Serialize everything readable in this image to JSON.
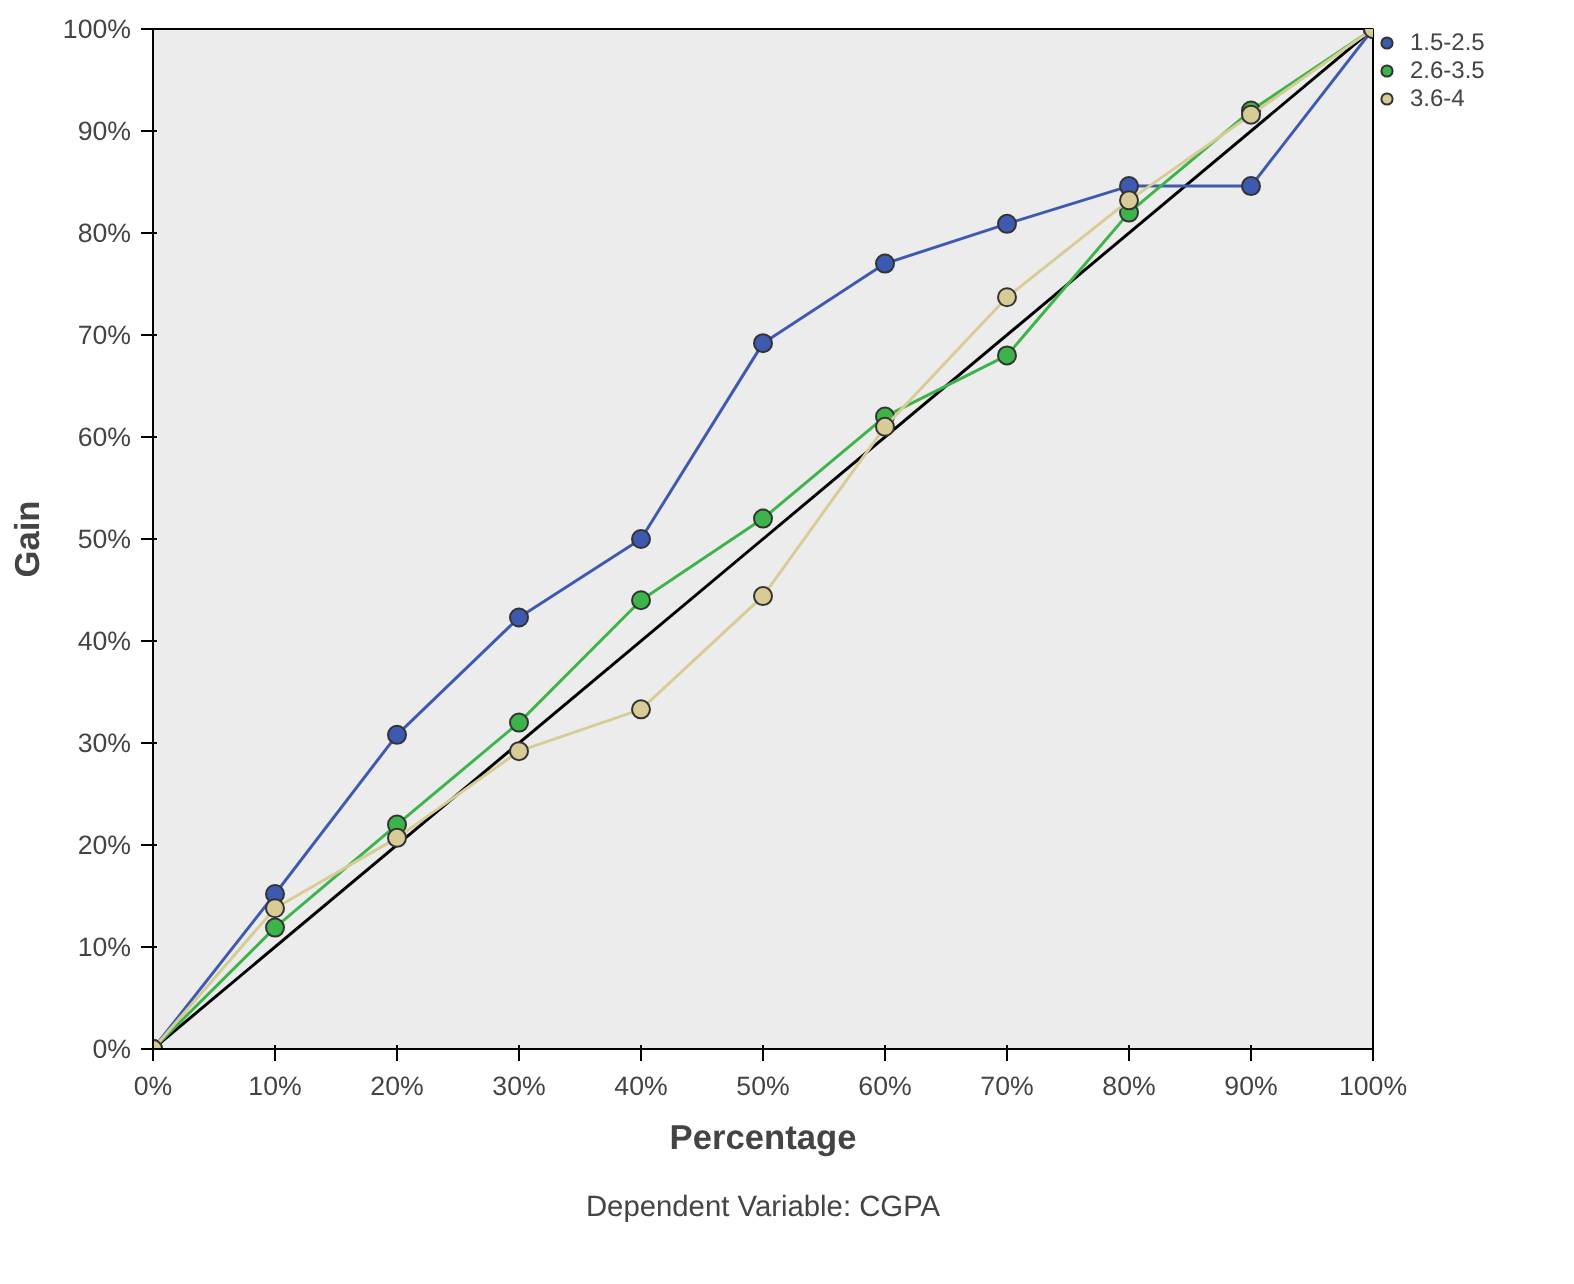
{
  "chart_data": {
    "type": "line",
    "xlabel": "Percentage",
    "ylabel": "Gain",
    "annotations": [
      "Dependent Variable: CGPA"
    ],
    "x": [
      0,
      10,
      20,
      30,
      40,
      50,
      60,
      70,
      80,
      90,
      100
    ],
    "xlim": [
      0,
      100
    ],
    "ylim": [
      0,
      100
    ],
    "xticks": [
      {
        "value": 0,
        "label": "0%"
      },
      {
        "value": 10,
        "label": "10%"
      },
      {
        "value": 20,
        "label": "20%"
      },
      {
        "value": 30,
        "label": "30%"
      },
      {
        "value": 40,
        "label": "40%"
      },
      {
        "value": 50,
        "label": "50%"
      },
      {
        "value": 60,
        "label": "60%"
      },
      {
        "value": 70,
        "label": "70%"
      },
      {
        "value": 80,
        "label": "80%"
      },
      {
        "value": 90,
        "label": "90%"
      },
      {
        "value": 100,
        "label": "100%"
      }
    ],
    "yticks": [
      {
        "value": 0,
        "label": "0%"
      },
      {
        "value": 10,
        "label": "10%"
      },
      {
        "value": 20,
        "label": "20%"
      },
      {
        "value": 30,
        "label": "30%"
      },
      {
        "value": 40,
        "label": "40%"
      },
      {
        "value": 50,
        "label": "50%"
      },
      {
        "value": 60,
        "label": "60%"
      },
      {
        "value": 70,
        "label": "70%"
      },
      {
        "value": 80,
        "label": "80%"
      },
      {
        "value": 90,
        "label": "90%"
      },
      {
        "value": 100,
        "label": "100%"
      }
    ],
    "series": [
      {
        "color": "#000000",
        "x": [
          0,
          100
        ],
        "values": [
          0,
          100
        ],
        "marker": "none"
      },
      {
        "name": "1.5-2.5",
        "color": "#3e5ab0",
        "values": [
          0,
          15.2,
          30.8,
          42.3,
          50,
          69.2,
          77,
          80.9,
          84.6,
          84.6,
          100
        ]
      },
      {
        "name": "2.6-3.5",
        "color": "#3cb44a",
        "values": [
          0,
          11.9,
          22,
          32,
          44,
          52,
          62,
          68,
          82,
          92,
          100
        ]
      },
      {
        "name": "3.6-4",
        "color": "#d8cc96",
        "values": [
          0,
          13.8,
          20.7,
          29.2,
          33.3,
          44.4,
          61,
          73.7,
          83.2,
          91.6,
          100
        ]
      }
    ],
    "marker": "circle",
    "legend": "top right",
    "grid": false
  }
}
